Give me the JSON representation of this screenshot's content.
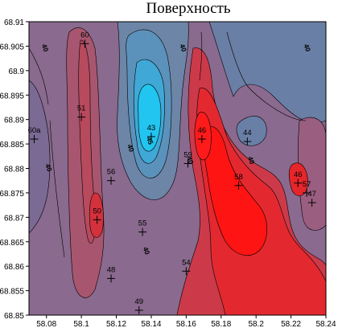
{
  "title": "Поверхность",
  "x_ticks": [
    "58.08",
    "58.1",
    "58.12",
    "58.14",
    "58.16",
    "58.18",
    "58.2",
    "58.22",
    "58.24"
  ],
  "y_ticks": [
    "68.91",
    "68.905",
    "68.9",
    "68.895",
    "68.89",
    "68.885",
    "68.88",
    "68.875",
    "68.87",
    "68.865",
    "68.86",
    "68.855",
    "68.85"
  ],
  "x_range": [
    58.07,
    58.24
  ],
  "y_range": [
    68.85,
    68.91
  ],
  "wells": [
    {
      "name": "60",
      "x": 58.102,
      "y": 68.9055
    },
    {
      "name": "51",
      "x": 58.1,
      "y": 68.8905
    },
    {
      "name": "60a",
      "x": 58.073,
      "y": 68.886
    },
    {
      "name": "56",
      "x": 58.117,
      "y": 68.8775
    },
    {
      "name": "50",
      "x": 58.109,
      "y": 68.8695
    },
    {
      "name": "55",
      "x": 58.135,
      "y": 68.867
    },
    {
      "name": "48",
      "x": 58.117,
      "y": 68.8575
    },
    {
      "name": "49",
      "x": 58.133,
      "y": 68.851
    },
    {
      "name": "54",
      "x": 58.16,
      "y": 68.859
    },
    {
      "name": "43",
      "x": 58.14,
      "y": 68.8865
    },
    {
      "name": "46",
      "x": 58.169,
      "y": 68.886
    },
    {
      "name": "59",
      "x": 58.161,
      "y": 68.881
    },
    {
      "name": "44",
      "x": 58.195,
      "y": 68.8855
    },
    {
      "name": "58",
      "x": 58.19,
      "y": 68.8765
    },
    {
      "name": "46",
      "x": 58.224,
      "y": 68.877
    },
    {
      "name": "57",
      "x": 58.229,
      "y": 68.875
    },
    {
      "name": "47",
      "x": 58.232,
      "y": 68.873
    }
  ],
  "contour_labels": [
    {
      "text": "40",
      "x": 58.078,
      "y": 68.9045
    },
    {
      "text": "40",
      "x": 58.08,
      "y": 68.88
    },
    {
      "text": "40",
      "x": 58.127,
      "y": 68.884
    },
    {
      "text": "40",
      "x": 58.157,
      "y": 68.9045
    },
    {
      "text": "40",
      "x": 58.161,
      "y": 68.8815
    },
    {
      "text": "40",
      "x": 58.196,
      "y": 68.8815
    },
    {
      "text": "40",
      "x": 58.228,
      "y": 68.9045
    },
    {
      "text": "40",
      "x": 58.136,
      "y": 68.863
    },
    {
      "text": "45",
      "x": 58.138,
      "y": 68.8855
    }
  ],
  "colors": {
    "background": "#8c6a8c",
    "light_red": "#c24a5d",
    "red": "#e22f36",
    "bright_red": "#ff0d0d",
    "blue": "#5d8aa8",
    "light_blue": "#3cb4dc",
    "cyan": "#20d2f4"
  }
}
